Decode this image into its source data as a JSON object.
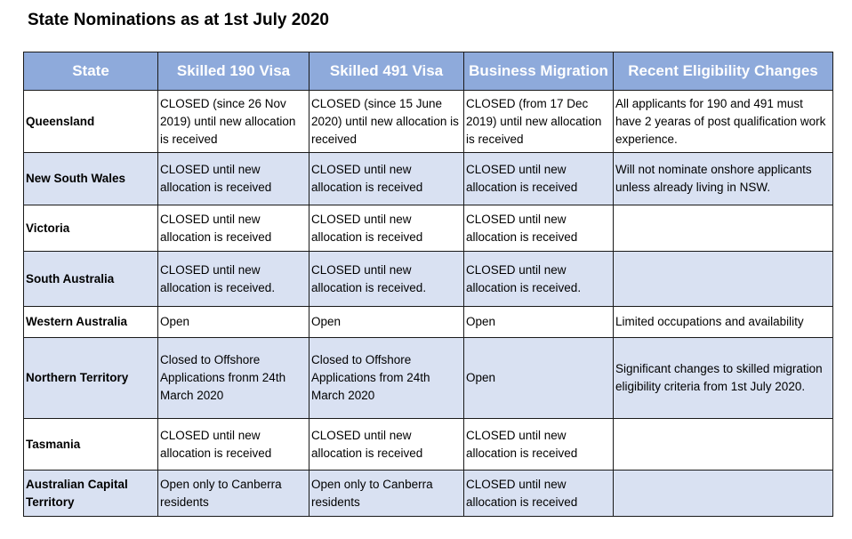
{
  "title": "State Nominations as at 1st July 2020",
  "columns": [
    "State",
    "Skilled 190 Visa",
    "Skilled 491 Visa",
    "Business Migration",
    "Recent Eligibility Changes"
  ],
  "rows": [
    {
      "state": "Queensland",
      "v190": "CLOSED (since 26 Nov 2019) until new allocation is received",
      "v491": "CLOSED (since 15 June 2020) until new allocation is received",
      "business": "CLOSED (from 17 Dec 2019) until new allocation is received",
      "changes": "All applicants for 190 and 491 must have 2 yearas of post qualification work experience."
    },
    {
      "state": "New South Wales",
      "v190": "CLOSED until new allocation is received",
      "v491": "CLOSED until new allocation is received",
      "business": "CLOSED until new allocation is received",
      "changes": "Will not nominate onshore applicants unless already living in NSW."
    },
    {
      "state": "Victoria",
      "v190": "CLOSED until new allocation is received",
      "v491": "CLOSED until new allocation is received",
      "business": "CLOSED until new allocation is received",
      "changes": ""
    },
    {
      "state": "South Australia",
      "v190": "CLOSED until new allocation is received.",
      "v491": "CLOSED until new allocation is received.",
      "business": "CLOSED until new allocation is received.",
      "changes": ""
    },
    {
      "state": "Western Australia",
      "v190": "Open",
      "v491": "Open",
      "business": "Open",
      "changes": "Limited occupations and availability"
    },
    {
      "state": "Northern Territory",
      "v190": "Closed to Offshore Applications fronm 24th March 2020",
      "v491": "Closed to Offshore Applications from 24th March 2020",
      "business": "Open",
      "changes": "Significant changes to skilled migration eligibility criteria from 1st July 2020."
    },
    {
      "state": "Tasmania",
      "v190": "CLOSED until new allocation is received",
      "v491": "CLOSED until new allocation is received",
      "business": "CLOSED until new allocation is received",
      "changes": ""
    },
    {
      "state": "Australian Capital Territory",
      "v190": "Open only to Canberra residents",
      "v491": "Open only to Canberra residents",
      "business": "CLOSED until new allocation is received",
      "changes": ""
    }
  ]
}
